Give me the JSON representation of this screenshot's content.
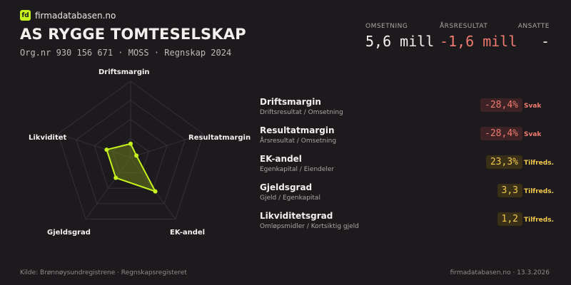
{
  "brand": {
    "logo_text": "fd",
    "name": "firmadatabasen.no"
  },
  "company": {
    "name": "AS RYGGE TOMTESELSKAP",
    "meta": "Org.nr 930 156 671  ·  MOSS  ·  Regnskap 2024"
  },
  "kpis": {
    "revenue": {
      "label": "OMSETNING",
      "value": "5,6 mill"
    },
    "result": {
      "label": "ÅRSRESULTAT",
      "value": "-1,6 mill"
    },
    "employees": {
      "label": "ANSATTE",
      "value": "-"
    }
  },
  "radar": {
    "axes": [
      "Driftsmargin",
      "Resultatmargin",
      "EK-andel",
      "Gjeldsgrad",
      "Likviditet"
    ],
    "levels": 4,
    "values": [
      0.18,
      0.08,
      0.55,
      0.33,
      0.33
    ],
    "grid_color": "#343137",
    "polygon_fill": "#6b7d1c",
    "polygon_stroke": "#c6f31d"
  },
  "metrics": [
    {
      "name": "Driftsmargin",
      "desc": "Driftsresultat / Omsetning",
      "value": "-28,4%",
      "status": "Svak",
      "level": "weak"
    },
    {
      "name": "Resultatmargin",
      "desc": "Årsresultat / Omsetning",
      "value": "-28,4%",
      "status": "Svak",
      "level": "weak"
    },
    {
      "name": "EK-andel",
      "desc": "Egenkapital / Eiendeler",
      "value": "23,3%",
      "status": "Tilfreds.",
      "level": "ok"
    },
    {
      "name": "Gjeldsgrad",
      "desc": "Gjeld / Egenkapital",
      "value": "3,3",
      "status": "Tilfreds.",
      "level": "ok"
    },
    {
      "name": "Likviditetsgrad",
      "desc": "Omløpsmidler / Kortsiktig gjeld",
      "value": "1,2",
      "status": "Tilfreds.",
      "level": "ok"
    }
  ],
  "footer": {
    "source": "Kilde: Brønnøysundregistrene · Regnskapsregisteret",
    "site_date": "firmadatabasen.no · 13.3.2026"
  }
}
